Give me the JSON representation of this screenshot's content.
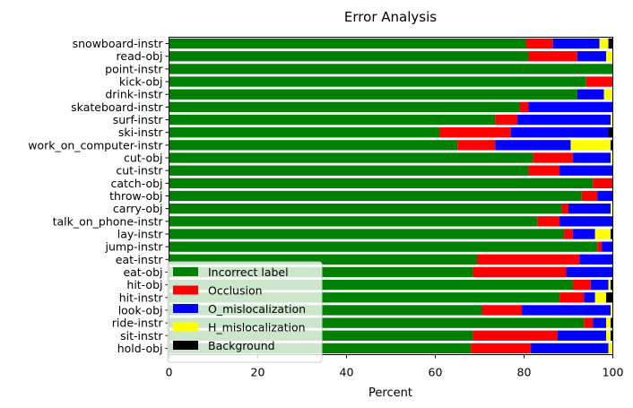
{
  "chart_data": {
    "type": "bar",
    "orientation": "horizontal",
    "stacked": true,
    "title": "Error Analysis",
    "xlabel": "Percent",
    "ylabel": "",
    "xlim": [
      0,
      100
    ],
    "xticks": [
      "0",
      "20",
      "40",
      "60",
      "80",
      "100"
    ],
    "grid": false,
    "legend_position": "lower-left",
    "categories": [
      "snowboard-instr",
      "read-obj",
      "point-instr",
      "kick-obj",
      "drink-instr",
      "skateboard-instr",
      "surf-instr",
      "ski-instr",
      "work_on_computer-instr",
      "cut-obj",
      "cut-instr",
      "catch-obj",
      "throw-obj",
      "carry-obj",
      "talk_on_phone-instr",
      "lay-instr",
      "jump-instr",
      "eat-instr",
      "eat-obj",
      "hit-obj",
      "hit-instr",
      "look-obj",
      "ride-instr",
      "sit-instr",
      "hold-obj"
    ],
    "series": [
      {
        "name": "Incorrect label",
        "color": "#008000",
        "values": [
          80.5,
          81,
          100,
          94,
          92,
          79,
          73.5,
          61,
          65,
          82,
          81,
          95.5,
          93,
          88.5,
          83,
          89,
          96.5,
          69.5,
          68.5,
          91,
          88,
          70.5,
          93.5,
          68.5,
          68
        ]
      },
      {
        "name": "Occlusion",
        "color": "#ff0000",
        "values": [
          6,
          11,
          0,
          6,
          0,
          2,
          5,
          16,
          8.5,
          9,
          7,
          4.5,
          3.5,
          1.5,
          5,
          2,
          1,
          23,
          21,
          4,
          5.5,
          9,
          2,
          19,
          13.5
        ]
      },
      {
        "name": "O_mislocalization",
        "color": "#0000ff",
        "values": [
          10.5,
          6.5,
          0,
          0,
          6,
          19,
          21,
          22,
          17,
          8.5,
          12,
          0,
          3.5,
          9.5,
          12,
          5,
          2.5,
          7.5,
          10.5,
          4,
          2.5,
          20,
          3,
          11,
          17.5
        ]
      },
      {
        "name": "H_mislocalization",
        "color": "#ffff00",
        "values": [
          2,
          1.5,
          0,
          0,
          2,
          0,
          0.5,
          0,
          9,
          0.5,
          0,
          0,
          0,
          0.5,
          0,
          3.5,
          0,
          0,
          0,
          0.5,
          2.5,
          0.5,
          1,
          1,
          1
        ]
      },
      {
        "name": "Background",
        "color": "#000000",
        "values": [
          1,
          0,
          0,
          0,
          0,
          0,
          0,
          1,
          0.5,
          0,
          0,
          0,
          0,
          0,
          0,
          0.5,
          0,
          0,
          0,
          0.5,
          1.5,
          0,
          0.5,
          0.5,
          0
        ]
      }
    ]
  }
}
